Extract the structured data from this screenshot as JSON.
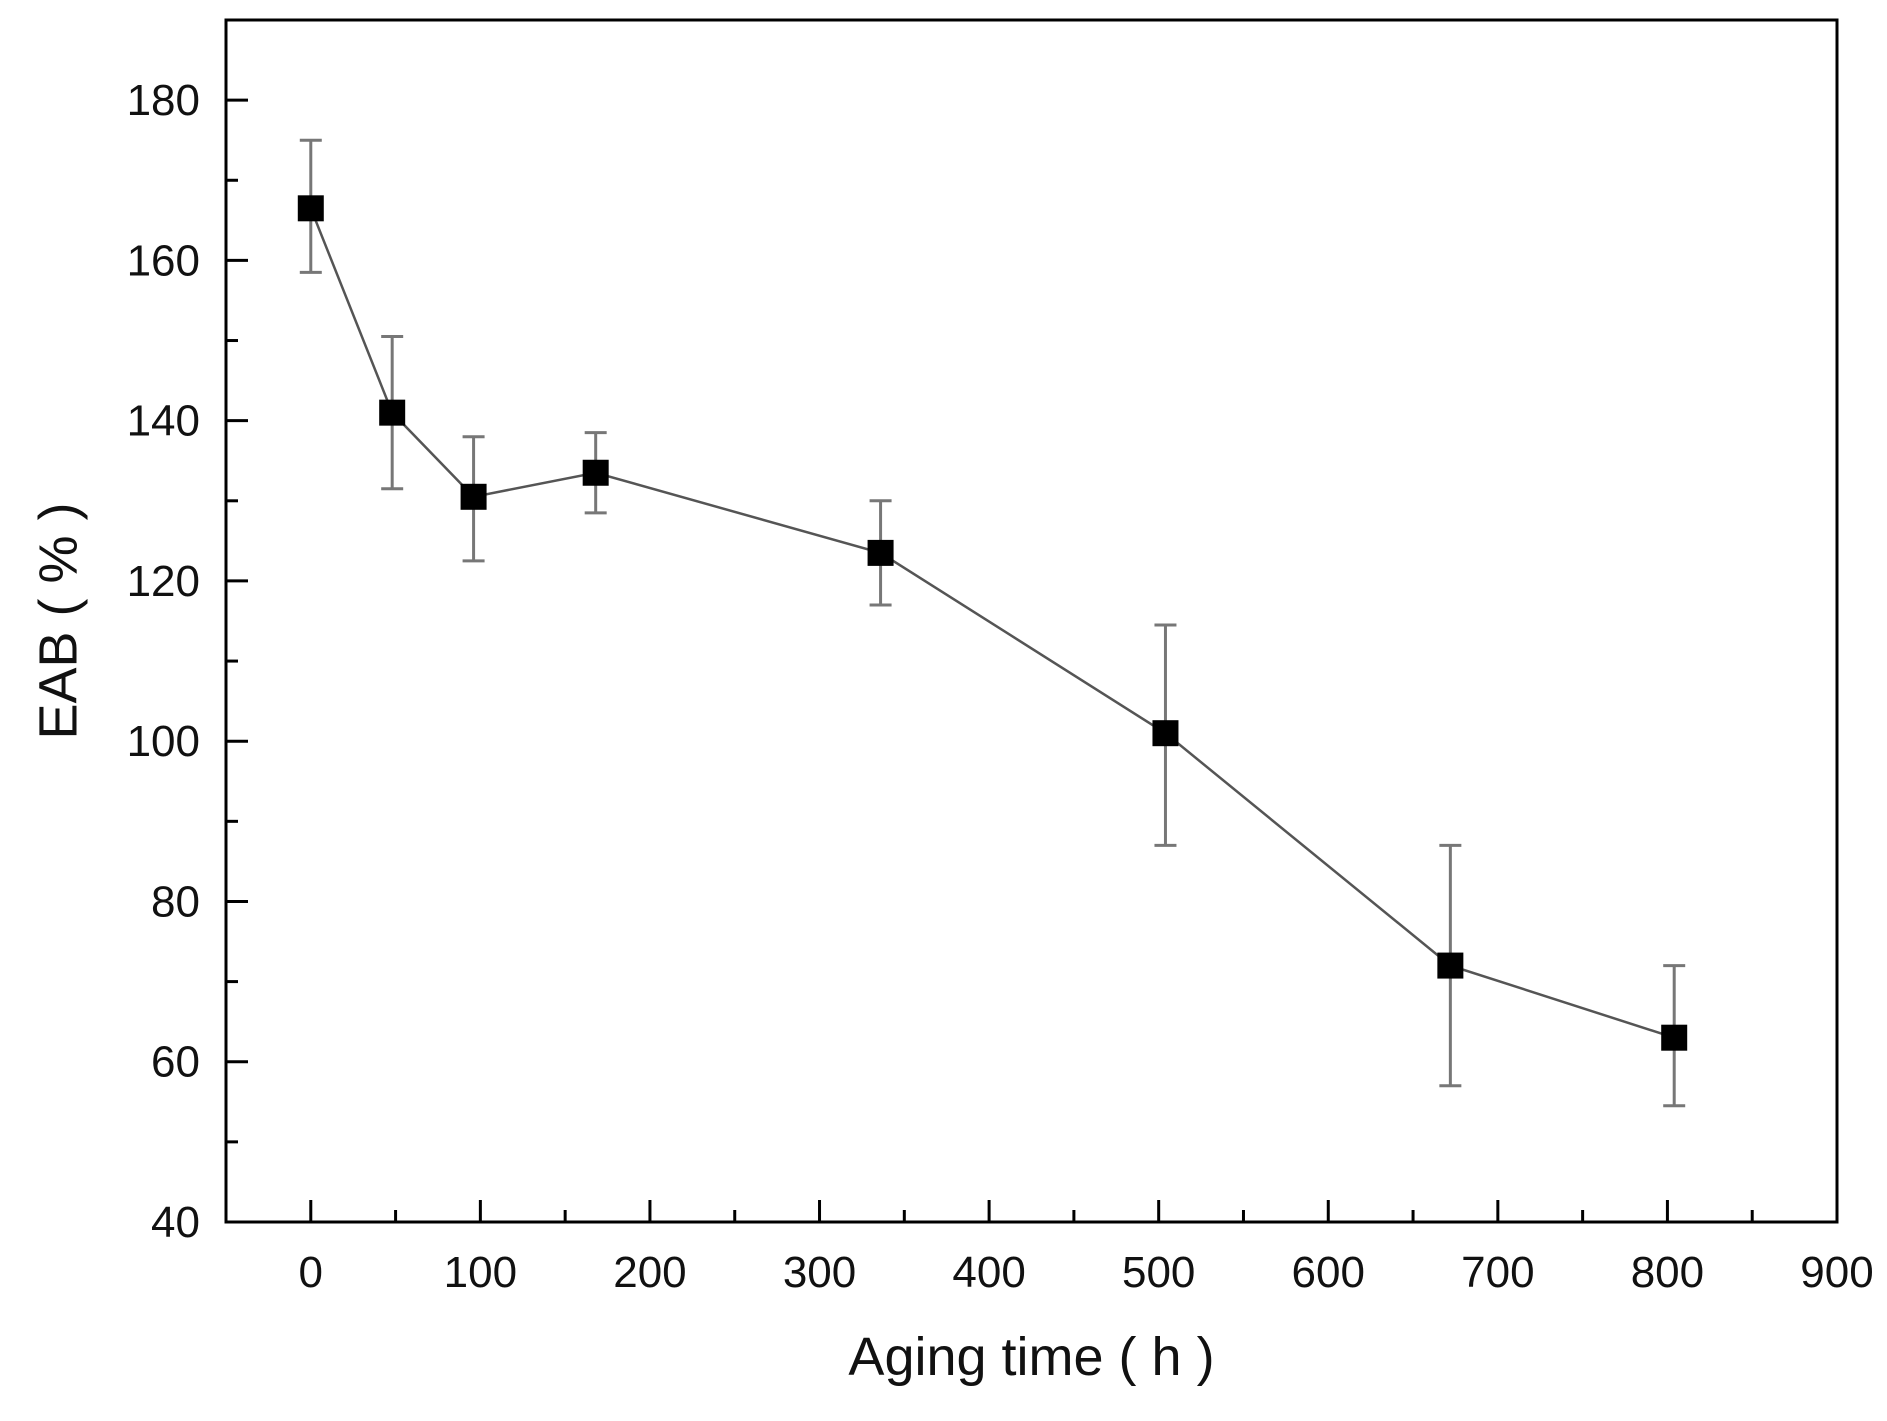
{
  "chart_data": {
    "type": "line",
    "title": "",
    "xlabel": "Aging time  ( h )",
    "ylabel": "EAB ( % )",
    "xlim": [
      -50,
      900
    ],
    "ylim": [
      40,
      190
    ],
    "x_ticks": [
      0,
      100,
      200,
      300,
      400,
      500,
      600,
      700,
      800,
      900
    ],
    "x_minor_ticks": [
      -50,
      50,
      150,
      250,
      350,
      450,
      550,
      650,
      750,
      850
    ],
    "y_ticks": [
      40,
      60,
      80,
      100,
      120,
      140,
      160,
      180
    ],
    "y_minor_ticks": [
      50,
      70,
      90,
      110,
      130,
      150,
      170,
      190
    ],
    "grid": false,
    "series": [
      {
        "name": "EAB",
        "marker": "square",
        "x": [
          0,
          48,
          96,
          168,
          336,
          504,
          672,
          804
        ],
        "y": [
          166.5,
          141,
          130.5,
          133.5,
          123.5,
          101,
          72,
          63
        ],
        "yerr_upper": [
          175,
          150.5,
          138,
          138.5,
          130,
          114.5,
          87,
          72
        ],
        "yerr_lower": [
          158.5,
          131.5,
          122.5,
          128.5,
          117,
          87,
          57,
          54.5
        ]
      }
    ],
    "colors": {
      "marker": "#000000",
      "line": "#555555",
      "errorbar": "#777777",
      "axis": "#000000"
    }
  }
}
